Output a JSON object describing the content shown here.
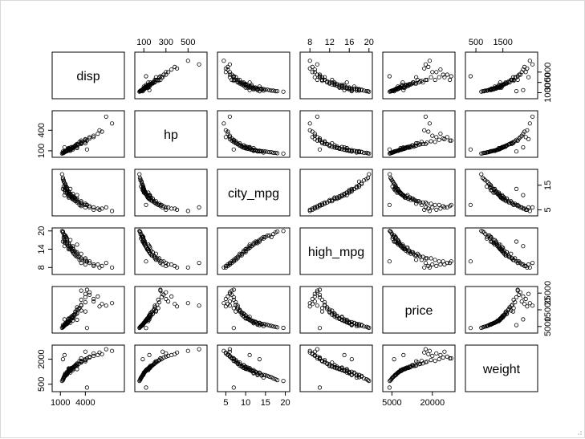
{
  "chart_data": {
    "type": "scatter",
    "kind": "scatterplot-matrix",
    "title": "",
    "variables": [
      {
        "name": "disp",
        "lim": [
          300,
          8400
        ],
        "ticks": [
          1000,
          4000
        ],
        "top_ticks": [
          100,
          300,
          500
        ],
        "right_ticks": [
          1000,
          3000,
          5000
        ]
      },
      {
        "name": "hp",
        "lim": [
          40,
          650
        ],
        "ticks": [
          100,
          400
        ],
        "top_ticks": [
          100,
          300,
          500
        ],
        "right_ticks": []
      },
      {
        "name": "city_mpg",
        "lim": [
          3.5,
          20.5
        ],
        "ticks": [
          5,
          10,
          15,
          20
        ],
        "top_ticks": [],
        "right_ticks": [
          5,
          15
        ]
      },
      {
        "name": "high_mpg",
        "lim": [
          6.5,
          20.2
        ],
        "ticks": [
          8,
          14,
          20
        ],
        "top_ticks": [
          8,
          12,
          16,
          20
        ],
        "right_ticks": []
      },
      {
        "name": "price",
        "lim": [
          2500,
          27500
        ],
        "ticks": [
          5000,
          20000
        ],
        "top_ticks": [],
        "right_ticks": [
          5000,
          15000,
          25000
        ]
      },
      {
        "name": "weight",
        "lim": [
          200,
          2700
        ],
        "ticks": [
          500,
          2000
        ],
        "top_ticks": [
          500,
          1500
        ],
        "right_ticks": []
      }
    ],
    "bottom_axis_vars": [
      0,
      2,
      4
    ],
    "left_axis_vars": [
      1,
      3,
      5
    ],
    "top_axis_vars": [
      1,
      3,
      5
    ],
    "right_axis_vars": [
      0,
      2,
      4
    ],
    "marker": "open-circle",
    "colors": {
      "points": "#000000",
      "axes": "#000000",
      "background": "#ffffff",
      "border": "#d9d9d9"
    },
    "observations": [
      {
        "disp": 1300,
        "hp": 70,
        "city_mpg": 17.5,
        "high_mpg": 19.5,
        "price": 4800,
        "weight": 800
      },
      {
        "disp": 1500,
        "hp": 80,
        "city_mpg": 16.0,
        "high_mpg": 18.5,
        "price": 5600,
        "weight": 950
      },
      {
        "disp": 1600,
        "hp": 90,
        "city_mpg": 15.0,
        "high_mpg": 18.0,
        "price": 6300,
        "weight": 1050
      },
      {
        "disp": 1400,
        "hp": 75,
        "city_mpg": 14.5,
        "high_mpg": 17.5,
        "price": 5200,
        "weight": 900
      },
      {
        "disp": 1800,
        "hp": 100,
        "city_mpg": 13.5,
        "high_mpg": 17.0,
        "price": 7000,
        "weight": 1150
      },
      {
        "disp": 1600,
        "hp": 95,
        "city_mpg": 13.0,
        "high_mpg": 16.5,
        "price": 6500,
        "weight": 1100
      },
      {
        "disp": 2000,
        "hp": 110,
        "city_mpg": 12.5,
        "high_mpg": 16.0,
        "price": 7800,
        "weight": 1250
      },
      {
        "disp": 1800,
        "hp": 105,
        "city_mpg": 12.0,
        "high_mpg": 15.5,
        "price": 7400,
        "weight": 1200
      },
      {
        "disp": 2000,
        "hp": 120,
        "city_mpg": 11.5,
        "high_mpg": 15.0,
        "price": 8200,
        "weight": 1300
      },
      {
        "disp": 2200,
        "hp": 125,
        "city_mpg": 11.0,
        "high_mpg": 14.5,
        "price": 8800,
        "weight": 1350
      },
      {
        "disp": 1600,
        "hp": 100,
        "city_mpg": 12.0,
        "high_mpg": 16.0,
        "price": 6900,
        "weight": 1150
      },
      {
        "disp": 2000,
        "hp": 130,
        "city_mpg": 10.5,
        "high_mpg": 14.0,
        "price": 9500,
        "weight": 1400
      },
      {
        "disp": 2400,
        "hp": 140,
        "city_mpg": 10.0,
        "high_mpg": 13.5,
        "price": 10200,
        "weight": 1450
      },
      {
        "disp": 2500,
        "hp": 150,
        "city_mpg": 9.5,
        "high_mpg": 13.0,
        "price": 11000,
        "weight": 1500
      },
      {
        "disp": 2000,
        "hp": 140,
        "city_mpg": 10.0,
        "high_mpg": 14.0,
        "price": 9800,
        "weight": 1450
      },
      {
        "disp": 2200,
        "hp": 115,
        "city_mpg": 11.5,
        "high_mpg": 15.0,
        "price": 8500,
        "weight": 1300
      },
      {
        "disp": 1800,
        "hp": 110,
        "city_mpg": 12.5,
        "high_mpg": 16.5,
        "price": 7600,
        "weight": 1250
      },
      {
        "disp": 2600,
        "hp": 160,
        "city_mpg": 9.0,
        "high_mpg": 12.5,
        "price": 12000,
        "weight": 1550
      },
      {
        "disp": 2800,
        "hp": 170,
        "city_mpg": 9.0,
        "high_mpg": 12.0,
        "price": 13500,
        "weight": 1600
      },
      {
        "disp": 3000,
        "hp": 190,
        "city_mpg": 8.5,
        "high_mpg": 12.0,
        "price": 15000,
        "weight": 1700
      },
      {
        "disp": 2700,
        "hp": 165,
        "city_mpg": 10.0,
        "high_mpg": 13.5,
        "price": 11500,
        "weight": 1550
      },
      {
        "disp": 3000,
        "hp": 200,
        "city_mpg": 8.0,
        "high_mpg": 11.5,
        "price": 16500,
        "weight": 1750
      },
      {
        "disp": 3500,
        "hp": 220,
        "city_mpg": 7.5,
        "high_mpg": 11.0,
        "price": 18000,
        "weight": 1850
      },
      {
        "disp": 3500,
        "hp": 210,
        "city_mpg": 8.5,
        "high_mpg": 12.5,
        "price": 14500,
        "weight": 1800
      },
      {
        "disp": 3000,
        "hp": 180,
        "city_mpg": 9.5,
        "high_mpg": 13.0,
        "price": 12800,
        "weight": 1650
      },
      {
        "disp": 2500,
        "hp": 155,
        "city_mpg": 10.5,
        "high_mpg": 14.5,
        "price": 10500,
        "weight": 1500
      },
      {
        "disp": 4000,
        "hp": 240,
        "city_mpg": 7.5,
        "high_mpg": 11.0,
        "price": 19500,
        "weight": 1950
      },
      {
        "disp": 3500,
        "hp": 230,
        "city_mpg": 7.0,
        "high_mpg": 10.5,
        "price": 21000,
        "weight": 1900
      },
      {
        "disp": 4000,
        "hp": 260,
        "city_mpg": 7.0,
        "high_mpg": 10.0,
        "price": 22500,
        "weight": 2000
      },
      {
        "disp": 4500,
        "hp": 280,
        "city_mpg": 6.5,
        "high_mpg": 10.0,
        "price": 24000,
        "weight": 2100
      },
      {
        "disp": 4500,
        "hp": 300,
        "city_mpg": 6.0,
        "high_mpg": 9.5,
        "price": 25500,
        "weight": 2150
      },
      {
        "disp": 5000,
        "hp": 320,
        "city_mpg": 6.0,
        "high_mpg": 9.0,
        "price": 20000,
        "weight": 2200
      },
      {
        "disp": 5500,
        "hp": 350,
        "city_mpg": 5.5,
        "high_mpg": 9.0,
        "price": 23000,
        "weight": 2250
      },
      {
        "disp": 6000,
        "hp": 380,
        "city_mpg": 5.5,
        "high_mpg": 8.5,
        "price": 18500,
        "weight": 2300
      },
      {
        "disp": 5700,
        "hp": 400,
        "city_mpg": 5.0,
        "high_mpg": 8.0,
        "price": 17000,
        "weight": 2400
      },
      {
        "disp": 3000,
        "hp": 140,
        "city_mpg": 11.0,
        "high_mpg": 15.5,
        "price": 9000,
        "weight": 1400
      },
      {
        "disp": 2200,
        "hp": 100,
        "city_mpg": 13.5,
        "high_mpg": 17.0,
        "price": 7200,
        "weight": 1200
      },
      {
        "disp": 1600,
        "hp": 85,
        "city_mpg": 15.5,
        "high_mpg": 18.5,
        "price": 5900,
        "weight": 1000
      },
      {
        "disp": 1300,
        "hp": 65,
        "city_mpg": 18.0,
        "high_mpg": 19.8,
        "price": 4500,
        "weight": 750
      },
      {
        "disp": 1400,
        "hp": 80,
        "city_mpg": 16.5,
        "high_mpg": 18.0,
        "price": 5400,
        "weight": 920
      },
      {
        "disp": 2000,
        "hp": 115,
        "city_mpg": 12.0,
        "high_mpg": 15.5,
        "price": 8000,
        "weight": 1280
      },
      {
        "disp": 2500,
        "hp": 135,
        "city_mpg": 10.0,
        "high_mpg": 14.0,
        "price": 10000,
        "weight": 1420
      },
      {
        "disp": 1800,
        "hp": 95,
        "city_mpg": 14.0,
        "high_mpg": 17.5,
        "price": 6600,
        "weight": 1080
      },
      {
        "disp": 2400,
        "hp": 145,
        "city_mpg": 9.5,
        "high_mpg": 13.5,
        "price": 11200,
        "weight": 1480
      },
      {
        "disp": 2800,
        "hp": 175,
        "city_mpg": 8.5,
        "high_mpg": 12.0,
        "price": 14000,
        "weight": 1620
      },
      {
        "disp": 3200,
        "hp": 195,
        "city_mpg": 8.0,
        "high_mpg": 11.5,
        "price": 15500,
        "weight": 1720
      },
      {
        "disp": 1200,
        "hp": 60,
        "city_mpg": 19.5,
        "high_mpg": 20.0,
        "price": 4200,
        "weight": 700
      },
      {
        "disp": 1500,
        "hp": 90,
        "city_mpg": 13.0,
        "high_mpg": 16.5,
        "price": 6100,
        "weight": 1050
      },
      {
        "disp": 2000,
        "hp": 125,
        "city_mpg": 11.0,
        "high_mpg": 14.5,
        "price": 9200,
        "weight": 1380
      },
      {
        "disp": 2200,
        "hp": 130,
        "city_mpg": 10.5,
        "high_mpg": 14.0,
        "price": 9700,
        "weight": 1400
      },
      {
        "disp": 2500,
        "hp": 120,
        "city_mpg": 11.5,
        "high_mpg": 15.0,
        "price": 8600,
        "weight": 1350
      },
      {
        "disp": 3500,
        "hp": 250,
        "city_mpg": 6.5,
        "high_mpg": 9.5,
        "price": 26500,
        "weight": 2050
      },
      {
        "disp": 4000,
        "hp": 270,
        "city_mpg": 6.0,
        "high_mpg": 9.0,
        "price": 24500,
        "weight": 2450
      },
      {
        "disp": 1800,
        "hp": 100,
        "city_mpg": 13.0,
        "high_mpg": 16.0,
        "price": 7100,
        "weight": 1180
      },
      {
        "disp": 1600,
        "hp": 90,
        "city_mpg": 14.0,
        "high_mpg": 17.5,
        "price": 6200,
        "weight": 1020
      },
      {
        "disp": 3000,
        "hp": 160,
        "city_mpg": 9.0,
        "high_mpg": 12.5,
        "price": 13000,
        "weight": 1600
      },
      {
        "disp": 2000,
        "hp": 105,
        "city_mpg": 12.5,
        "high_mpg": 16.0,
        "price": 7500,
        "weight": 1230
      },
      {
        "disp": 2600,
        "hp": 150,
        "city_mpg": 10.0,
        "high_mpg": 13.0,
        "price": 11800,
        "weight": 1520
      },
      {
        "disp": 1400,
        "hp": 70,
        "city_mpg": 17.0,
        "high_mpg": 19.0,
        "price": 5000,
        "weight": 850
      },
      {
        "disp": 5000,
        "hp": 300,
        "city_mpg": 5.0,
        "high_mpg": 8.5,
        "price": 21500,
        "weight": 2350
      },
      {
        "disp": 7200,
        "hp": 500,
        "city_mpg": 4.5,
        "high_mpg": 8.0,
        "price": 19000,
        "weight": 2500
      },
      {
        "disp": 6500,
        "hp": 600,
        "city_mpg": 6.0,
        "high_mpg": 9.5,
        "price": 17500,
        "weight": 2600
      },
      {
        "disp": 3300,
        "hp": 230,
        "city_mpg": 7.0,
        "high_mpg": 10.5,
        "price": 16000,
        "weight": 1900
      },
      {
        "disp": 4200,
        "hp": 250,
        "city_mpg": 7.0,
        "high_mpg": 10.0,
        "price": 27000,
        "weight": 2050
      },
      {
        "disp": 2000,
        "hp": 140,
        "city_mpg": 12.0,
        "high_mpg": 15.5,
        "price": 8200,
        "weight": 1350
      },
      {
        "disp": 2300,
        "hp": 155,
        "city_mpg": 11.0,
        "high_mpg": 14.5,
        "price": 10800,
        "weight": 1470
      },
      {
        "disp": 1700,
        "hp": 95,
        "city_mpg": 14.5,
        "high_mpg": 18.0,
        "price": 6400,
        "weight": 1060
      },
      {
        "disp": 3500,
        "hp": 200,
        "city_mpg": 8.0,
        "high_mpg": 11.0,
        "price": 17500,
        "weight": 1820
      },
      {
        "disp": 4000,
        "hp": 210,
        "city_mpg": 7.5,
        "high_mpg": 10.5,
        "price": 14000,
        "weight": 1880
      },
      {
        "disp": 2800,
        "hp": 180,
        "city_mpg": 9.5,
        "high_mpg": 13.0,
        "price": 12500,
        "weight": 1640
      },
      {
        "disp": 4200,
        "hp": 120,
        "city_mpg": 7.0,
        "high_mpg": 10.0,
        "price": 4100,
        "weight": 300
      },
      {
        "disp": 1500,
        "hp": 150,
        "city_mpg": 11.0,
        "high_mpg": 15.0,
        "price": 9300,
        "weight": 2250
      },
      {
        "disp": 1300,
        "hp": 90,
        "city_mpg": 13.5,
        "high_mpg": 16.5,
        "price": 5800,
        "weight": 2000
      }
    ]
  }
}
